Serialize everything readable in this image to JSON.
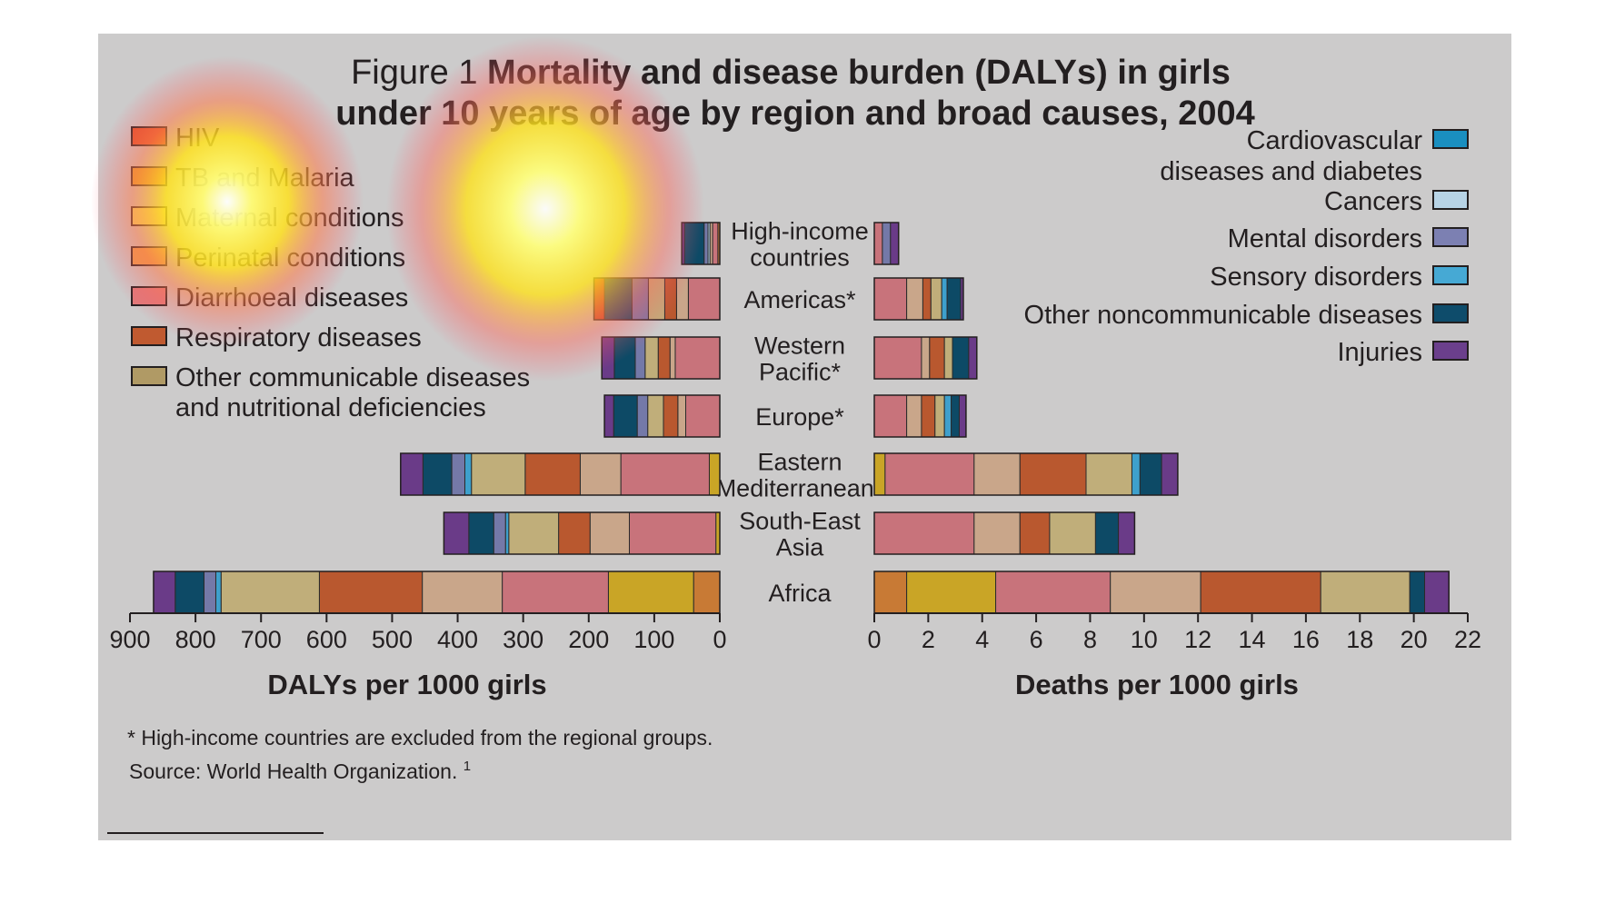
{
  "figure": {
    "title_prefix": "Figure 1",
    "title_line1_bold": "Mortality and disease burden (DALYs) in girls",
    "title_line2_bold": "under 10 years of age by region and broad causes, 2004",
    "footnote": "* High-income countries are excluded from the regional groups.",
    "source_text": "Source: World Health Organization.",
    "source_ref": "1",
    "background_color": "#cccbcb"
  },
  "legend_left": [
    {
      "lines": [
        "HIV"
      ],
      "color": "#e0532a"
    },
    {
      "lines": [
        "TB and Malaria"
      ],
      "color": "#e3a12a"
    },
    {
      "lines": [
        "Maternal conditions"
      ],
      "color": "#efe36a"
    },
    {
      "lines": [
        "Perinatal conditions"
      ],
      "color": "#e9a04e"
    },
    {
      "lines": [
        "Diarrhoeal diseases"
      ],
      "color": "#e07a7a"
    },
    {
      "lines": [
        "Respiratory diseases"
      ],
      "color": "#c05a30"
    },
    {
      "lines": [
        "Other communicable diseases",
        "and nutritional deficiencies"
      ],
      "color": "#b09a65"
    }
  ],
  "legend_right": [
    {
      "lines": [
        "Cardiovascular",
        "diseases and diabetes"
      ],
      "color": "#1a8fc0"
    },
    {
      "lines": [
        "Cancers"
      ],
      "color": "#b8d4e6"
    },
    {
      "lines": [
        "Mental disorders"
      ],
      "color": "#7c80b2"
    },
    {
      "lines": [
        "Sensory disorders"
      ],
      "color": "#46a9d4"
    },
    {
      "lines": [
        "Other noncommunicable diseases"
      ],
      "color": "#0e4c6b"
    },
    {
      "lines": [
        "Injuries"
      ],
      "color": "#6b3f8c"
    }
  ],
  "regions": [
    {
      "lines": [
        "High-income",
        "countries"
      ]
    },
    {
      "lines": [
        "Americas*"
      ]
    },
    {
      "lines": [
        "Western",
        "Pacific*"
      ]
    },
    {
      "lines": [
        "Europe*"
      ]
    },
    {
      "lines": [
        "Eastern",
        "Mediterranean*"
      ]
    },
    {
      "lines": [
        "South-East",
        "Asia"
      ]
    },
    {
      "lines": [
        "Africa"
      ]
    }
  ],
  "segment_colors": {
    "HIV": "#c73b2a",
    "TB and Malaria": "#c9a526",
    "Maternal conditions": "#d9cf5c",
    "Perinatal conditions": "#c87a35",
    "Diarrhoeal diseases": "#c8737b",
    "Respiratory diseases": "#b9582f",
    "Other communicable diseases and nutritional deficiencies": "#c0ae7a",
    "Other communicable (tan)": "#c9a68a",
    "Cardiovascular diseases and diabetes": "#1d86b8",
    "Cancers": "#a9c6da",
    "Mental disorders": "#7479a8",
    "Sensory disorders": "#3ea0cc",
    "Other noncommunicable diseases": "#0d4a66",
    "Injuries": "#6a3b88"
  },
  "chart_data": [
    {
      "type": "bar",
      "orientation": "horizontal",
      "stacked": true,
      "direction": "right-to-left",
      "xlabel": "DALYs per 1000 girls",
      "xlim": [
        0,
        900
      ],
      "ticks": [
        900,
        800,
        700,
        600,
        500,
        400,
        300,
        200,
        100,
        0
      ],
      "categories": [
        "High-income countries",
        "Americas*",
        "Western Pacific*",
        "Europe*",
        "Eastern Mediterranean*",
        "South-East Asia",
        "Africa"
      ],
      "stacks": [
        [
          {
            "cause": "Perinatal conditions",
            "value": 3
          },
          {
            "cause": "Diarrhoeal diseases",
            "value": 8
          },
          {
            "cause": "Other communicable (tan)",
            "value": 4
          },
          {
            "cause": "Cancers",
            "value": 3
          },
          {
            "cause": "Mental disorders",
            "value": 6
          },
          {
            "cause": "Other noncommunicable diseases",
            "value": 30
          },
          {
            "cause": "Injuries",
            "value": 4
          }
        ],
        [
          {
            "cause": "Diarrhoeal diseases",
            "value": 48
          },
          {
            "cause": "Other communicable (tan)",
            "value": 18
          },
          {
            "cause": "Respiratory diseases",
            "value": 18
          },
          {
            "cause": "Other communicable diseases and nutritional deficiencies",
            "value": 25
          },
          {
            "cause": "Mental disorders",
            "value": 25
          },
          {
            "cause": "Other noncommunicable diseases",
            "value": 42
          },
          {
            "cause": "HIV",
            "value": 16
          }
        ],
        [
          {
            "cause": "Diarrhoeal diseases",
            "value": 68
          },
          {
            "cause": "Other communicable (tan)",
            "value": 8
          },
          {
            "cause": "Respiratory diseases",
            "value": 18
          },
          {
            "cause": "Other communicable diseases and nutritional deficiencies",
            "value": 20
          },
          {
            "cause": "Mental disorders",
            "value": 15
          },
          {
            "cause": "Other noncommunicable diseases",
            "value": 32
          },
          {
            "cause": "Injuries",
            "value": 19
          }
        ],
        [
          {
            "cause": "Diarrhoeal diseases",
            "value": 52
          },
          {
            "cause": "Other communicable (tan)",
            "value": 12
          },
          {
            "cause": "Respiratory diseases",
            "value": 22
          },
          {
            "cause": "Other communicable diseases and nutritional deficiencies",
            "value": 24
          },
          {
            "cause": "Mental disorders",
            "value": 16
          },
          {
            "cause": "Other noncommunicable diseases",
            "value": 36
          },
          {
            "cause": "Injuries",
            "value": 14
          }
        ],
        [
          {
            "cause": "TB and Malaria",
            "value": 16
          },
          {
            "cause": "Diarrhoeal diseases",
            "value": 135
          },
          {
            "cause": "Other communicable (tan)",
            "value": 62
          },
          {
            "cause": "Respiratory diseases",
            "value": 84
          },
          {
            "cause": "Other communicable diseases and nutritional deficiencies",
            "value": 82
          },
          {
            "cause": "Sensory disorders",
            "value": 10
          },
          {
            "cause": "Mental disorders",
            "value": 20
          },
          {
            "cause": "Other noncommunicable diseases",
            "value": 44
          },
          {
            "cause": "Injuries",
            "value": 34
          }
        ],
        [
          {
            "cause": "TB and Malaria",
            "value": 6
          },
          {
            "cause": "Diarrhoeal diseases",
            "value": 132
          },
          {
            "cause": "Other communicable (tan)",
            "value": 60
          },
          {
            "cause": "Respiratory diseases",
            "value": 48
          },
          {
            "cause": "Other communicable diseases and nutritional deficiencies",
            "value": 76
          },
          {
            "cause": "Sensory disorders",
            "value": 5
          },
          {
            "cause": "Mental disorders",
            "value": 18
          },
          {
            "cause": "Other noncommunicable diseases",
            "value": 38
          },
          {
            "cause": "Injuries",
            "value": 38
          }
        ],
        [
          {
            "cause": "Perinatal conditions",
            "value": 40
          },
          {
            "cause": "TB and Malaria",
            "value": 130
          },
          {
            "cause": "Diarrhoeal diseases",
            "value": 162
          },
          {
            "cause": "Other communicable (tan)",
            "value": 122
          },
          {
            "cause": "Respiratory diseases",
            "value": 157
          },
          {
            "cause": "Other communicable diseases and nutritional deficiencies",
            "value": 150
          },
          {
            "cause": "Sensory disorders",
            "value": 8
          },
          {
            "cause": "Mental disorders",
            "value": 18
          },
          {
            "cause": "Other noncommunicable diseases",
            "value": 44
          },
          {
            "cause": "Injuries",
            "value": 33
          }
        ]
      ]
    },
    {
      "type": "bar",
      "orientation": "horizontal",
      "stacked": true,
      "direction": "left-to-right",
      "xlabel": "Deaths per 1000 girls",
      "xlim": [
        0,
        22
      ],
      "ticks": [
        0,
        2,
        4,
        6,
        8,
        10,
        12,
        14,
        16,
        18,
        20,
        22
      ],
      "categories": [
        "High-income countries",
        "Americas*",
        "Western Pacific*",
        "Europe*",
        "Eastern Mediterranean*",
        "South-East Asia",
        "Africa"
      ],
      "stacks": [
        [
          {
            "cause": "Diarrhoeal diseases",
            "value": 0.3
          },
          {
            "cause": "Mental disorders",
            "value": 0.3
          },
          {
            "cause": "Injuries",
            "value": 0.3
          }
        ],
        [
          {
            "cause": "Diarrhoeal diseases",
            "value": 1.2
          },
          {
            "cause": "Other communicable (tan)",
            "value": 0.6
          },
          {
            "cause": "Respiratory diseases",
            "value": 0.3
          },
          {
            "cause": "Other communicable diseases and nutritional deficiencies",
            "value": 0.4
          },
          {
            "cause": "Sensory disorders",
            "value": 0.2
          },
          {
            "cause": "Other noncommunicable diseases",
            "value": 0.5
          },
          {
            "cause": "Injuries",
            "value": 0.1
          }
        ],
        [
          {
            "cause": "Diarrhoeal diseases",
            "value": 1.75
          },
          {
            "cause": "Other communicable (tan)",
            "value": 0.3
          },
          {
            "cause": "Respiratory diseases",
            "value": 0.55
          },
          {
            "cause": "Other communicable diseases and nutritional deficiencies",
            "value": 0.3
          },
          {
            "cause": "Other noncommunicable diseases",
            "value": 0.6
          },
          {
            "cause": "Injuries",
            "value": 0.3
          }
        ],
        [
          {
            "cause": "Diarrhoeal diseases",
            "value": 1.2
          },
          {
            "cause": "Other communicable (tan)",
            "value": 0.55
          },
          {
            "cause": "Respiratory diseases",
            "value": 0.5
          },
          {
            "cause": "Other communicable diseases and nutritional deficiencies",
            "value": 0.35
          },
          {
            "cause": "Sensory disorders",
            "value": 0.25
          },
          {
            "cause": "Other noncommunicable diseases",
            "value": 0.3
          },
          {
            "cause": "Injuries",
            "value": 0.25
          }
        ],
        [
          {
            "cause": "TB and Malaria",
            "value": 0.4
          },
          {
            "cause": "Diarrhoeal diseases",
            "value": 3.3
          },
          {
            "cause": "Other communicable (tan)",
            "value": 1.7
          },
          {
            "cause": "Respiratory diseases",
            "value": 2.45
          },
          {
            "cause": "Other communicable diseases and nutritional deficiencies",
            "value": 1.7
          },
          {
            "cause": "Sensory disorders",
            "value": 0.3
          },
          {
            "cause": "Other noncommunicable diseases",
            "value": 0.8
          },
          {
            "cause": "Injuries",
            "value": 0.6
          }
        ],
        [
          {
            "cause": "Diarrhoeal diseases",
            "value": 3.7
          },
          {
            "cause": "Other communicable (tan)",
            "value": 1.7
          },
          {
            "cause": "Respiratory diseases",
            "value": 1.1
          },
          {
            "cause": "Other communicable diseases and nutritional deficiencies",
            "value": 1.7
          },
          {
            "cause": "Other noncommunicable diseases",
            "value": 0.85
          },
          {
            "cause": "Injuries",
            "value": 0.6
          }
        ],
        [
          {
            "cause": "Perinatal conditions",
            "value": 1.2
          },
          {
            "cause": "TB and Malaria",
            "value": 3.3
          },
          {
            "cause": "Diarrhoeal diseases",
            "value": 4.25
          },
          {
            "cause": "Other communicable (tan)",
            "value": 3.35
          },
          {
            "cause": "Respiratory diseases",
            "value": 4.45
          },
          {
            "cause": "Other communicable diseases and nutritional deficiencies",
            "value": 3.3
          },
          {
            "cause": "Other noncommunicable diseases",
            "value": 0.55
          },
          {
            "cause": "Injuries",
            "value": 0.9
          }
        ]
      ]
    }
  ]
}
